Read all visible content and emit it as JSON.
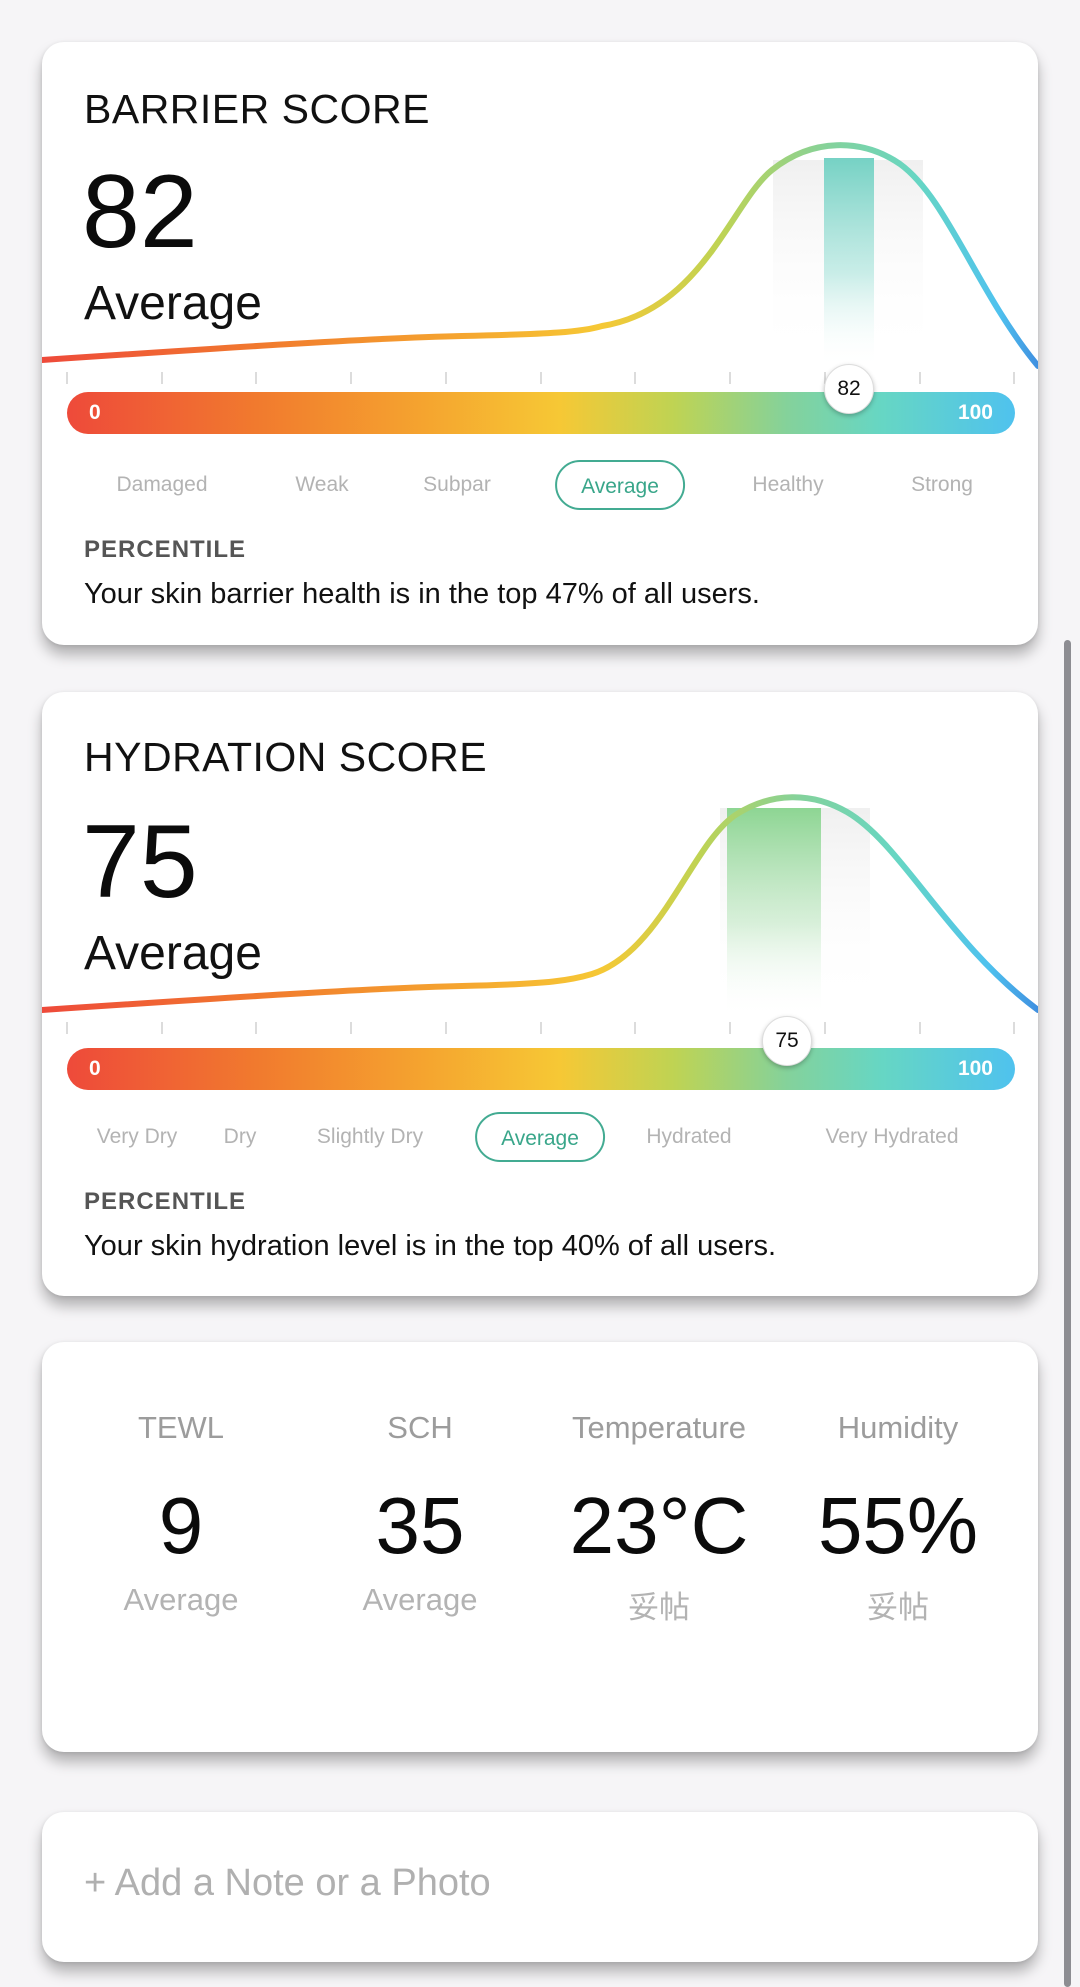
{
  "barrier": {
    "title": "BARRIER SCORE",
    "score": "82",
    "level": "Average",
    "scale_min": "0",
    "scale_max": "100",
    "marker_value": 82,
    "marker_label": "82",
    "categories": [
      "Damaged",
      "Weak",
      "Subpar",
      "Average",
      "Healthy",
      "Strong"
    ],
    "active_category": "Average",
    "percentile_label": "PERCENTILE",
    "percentile_text": "Your skin barrier health is in the top 47% of all users."
  },
  "hydration": {
    "title": "HYDRATION SCORE",
    "score": "75",
    "level": "Average",
    "scale_min": "0",
    "scale_max": "100",
    "marker_value": 75,
    "marker_label": "75",
    "categories": [
      "Very Dry",
      "Dry",
      "Slightly Dry",
      "Average",
      "Hydrated",
      "Very Hydrated"
    ],
    "active_category": "Average",
    "percentile_label": "PERCENTILE",
    "percentile_text": "Your skin hydration level is in the top 40% of all users."
  },
  "metrics": [
    {
      "name": "TEWL",
      "value": "9",
      "status": "Average"
    },
    {
      "name": "SCH",
      "value": "35",
      "status": "Average"
    },
    {
      "name": "Temperature",
      "value": "23°C",
      "status": "妥帖"
    },
    {
      "name": "Humidity",
      "value": "55%",
      "status": "妥帖"
    }
  ],
  "note": {
    "placeholder": "+ Add a Note or a Photo"
  },
  "colors": {
    "accent": "#43ab92",
    "scale_red": "#ee4a3a",
    "scale_yellow": "#f6c835",
    "scale_green": "#84d29b",
    "scale_blue": "#4fc2ee"
  }
}
